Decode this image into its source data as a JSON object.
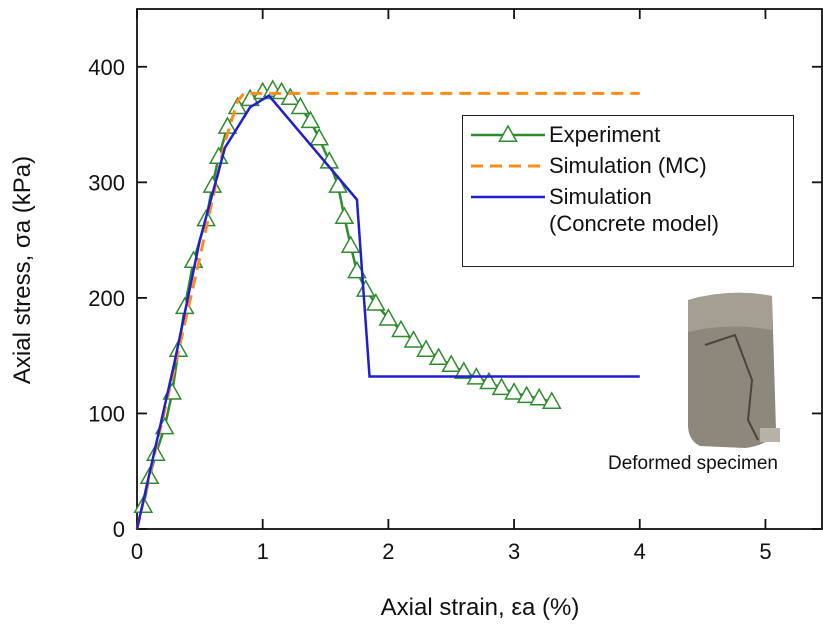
{
  "chart_data": {
    "type": "line",
    "x_label": "Axial strain, εa (%)",
    "y_label": "Axial stress, σa (kPa)",
    "annotation": "Deformed specimen",
    "xlim": [
      0,
      5.45
    ],
    "ylim": [
      0,
      450
    ],
    "xticks": [
      0,
      1,
      2,
      3,
      4,
      5
    ],
    "yticks": [
      0,
      100,
      200,
      300,
      400
    ],
    "series": [
      {
        "name": "Experiment",
        "color": "#2e8b2e",
        "marker": "triangle",
        "dash": "solid",
        "x": [
          0.05,
          0.1,
          0.15,
          0.22,
          0.28,
          0.33,
          0.38,
          0.45,
          0.55,
          0.6,
          0.65,
          0.72,
          0.8,
          0.9,
          1.0,
          1.08,
          1.15,
          1.22,
          1.3,
          1.38,
          1.45,
          1.53,
          1.6,
          1.65,
          1.7,
          1.75,
          1.82,
          1.9,
          2.0,
          2.1,
          2.2,
          2.3,
          2.4,
          2.5,
          2.6,
          2.7,
          2.8,
          2.9,
          3.0,
          3.1,
          3.2,
          3.3
        ],
        "values": [
          20,
          45,
          65,
          88,
          118,
          155,
          192,
          232,
          268,
          297,
          322,
          348,
          365,
          372,
          378,
          380,
          378,
          373,
          365,
          353,
          338,
          318,
          297,
          270,
          245,
          223,
          207,
          195,
          182,
          172,
          163,
          155,
          148,
          142,
          136,
          131,
          127,
          122,
          118,
          115,
          113,
          110
        ]
      },
      {
        "name": "Simulation (MC)",
        "color": "#ff8c1a",
        "marker": "none",
        "dash": "dashed",
        "x": [
          0,
          0.3,
          0.5,
          0.6,
          0.7,
          0.8,
          0.85,
          4.0
        ],
        "values": [
          0,
          140,
          235,
          285,
          335,
          370,
          377,
          377
        ]
      },
      {
        "name": "Simulation (Concrete model)",
        "color": "#1f1fd0",
        "marker": "none",
        "dash": "solid",
        "x": [
          0,
          0.3,
          0.5,
          0.7,
          0.9,
          1.05,
          1.75,
          1.85,
          4.0
        ],
        "values": [
          0,
          145,
          250,
          330,
          365,
          375,
          285,
          132,
          132
        ]
      }
    ]
  }
}
